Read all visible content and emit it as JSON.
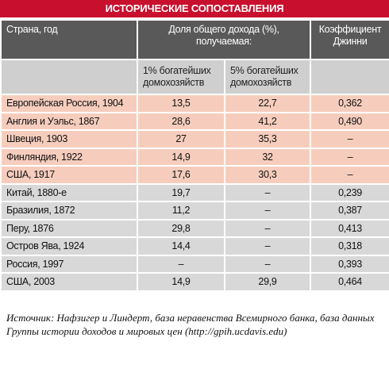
{
  "title": "ИСТОРИЧЕСКИЕ СОПОСТАВЛЕНИЯ",
  "header": {
    "country": "Страна, год",
    "share": "Доля общего дохода (%), получаемая:",
    "top1": "1% богатейших домохозяйств",
    "top5": "5% богатейших домохозяйств",
    "gini": "Коэффициент Джинни"
  },
  "table": {
    "rows": [
      [
        "Европейская Россия, 1904",
        "13,5",
        "22,7",
        "0,362"
      ],
      [
        "Англия и Уэльс, 1867",
        "28,6",
        "41,2",
        "0,490"
      ],
      [
        "Швеция, 1903",
        "27",
        "35,3",
        "–"
      ],
      [
        "Финляндия, 1922",
        "14,9",
        "32",
        "–"
      ],
      [
        "США, 1917",
        "17,6",
        "30,3",
        "–"
      ],
      [
        "Китай, 1880-е",
        "19,7",
        "–",
        "0,239"
      ],
      [
        "Бразилия, 1872",
        "11,2",
        "–",
        "0,387"
      ],
      [
        "Перу, 1876",
        "29,8",
        "–",
        "0,413"
      ],
      [
        "Остров Ява, 1924",
        "14,4",
        "–",
        "0,318"
      ],
      [
        "Россия, 1997",
        "–",
        "–",
        "0,393"
      ],
      [
        "США, 2003",
        "14,9",
        "29,9",
        "0,464"
      ]
    ]
  },
  "source": "Источник: Нафзигер и Линдерт, база неравенства Всемирного банка, база данных Группы истории доходов и мировых цен (http://gpih.ucdavis.edu)"
}
